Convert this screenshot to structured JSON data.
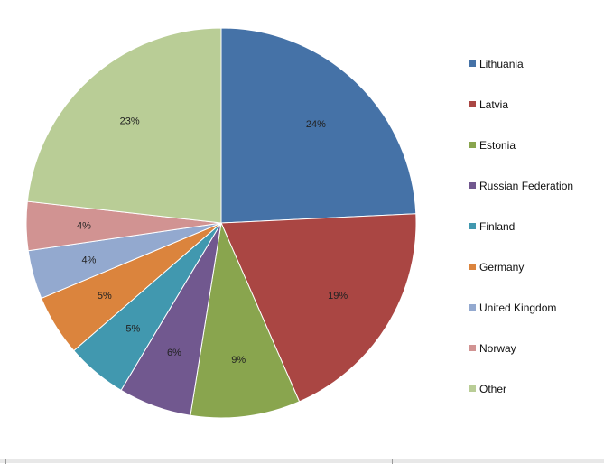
{
  "chart_data": {
    "type": "pie",
    "start_angle_deg": 0,
    "direction": "clockwise",
    "legend_position": "right",
    "categories": [
      "Lithuania",
      "Latvia",
      "Estonia",
      "Russian Federation",
      "Finland",
      "Germany",
      "United Kingdom",
      "Norway",
      "Other"
    ],
    "values": [
      24,
      19,
      9,
      6,
      5,
      5,
      4,
      4,
      23
    ],
    "value_labels": [
      "24%",
      "19%",
      "9%",
      "6%",
      "5%",
      "5%",
      "4%",
      "4%",
      "23%"
    ],
    "colors": [
      "#4572A7",
      "#AA4643",
      "#89A54E",
      "#71588F",
      "#4198AF",
      "#DB843D",
      "#93A9CF",
      "#D19392",
      "#B9CD96"
    ]
  }
}
